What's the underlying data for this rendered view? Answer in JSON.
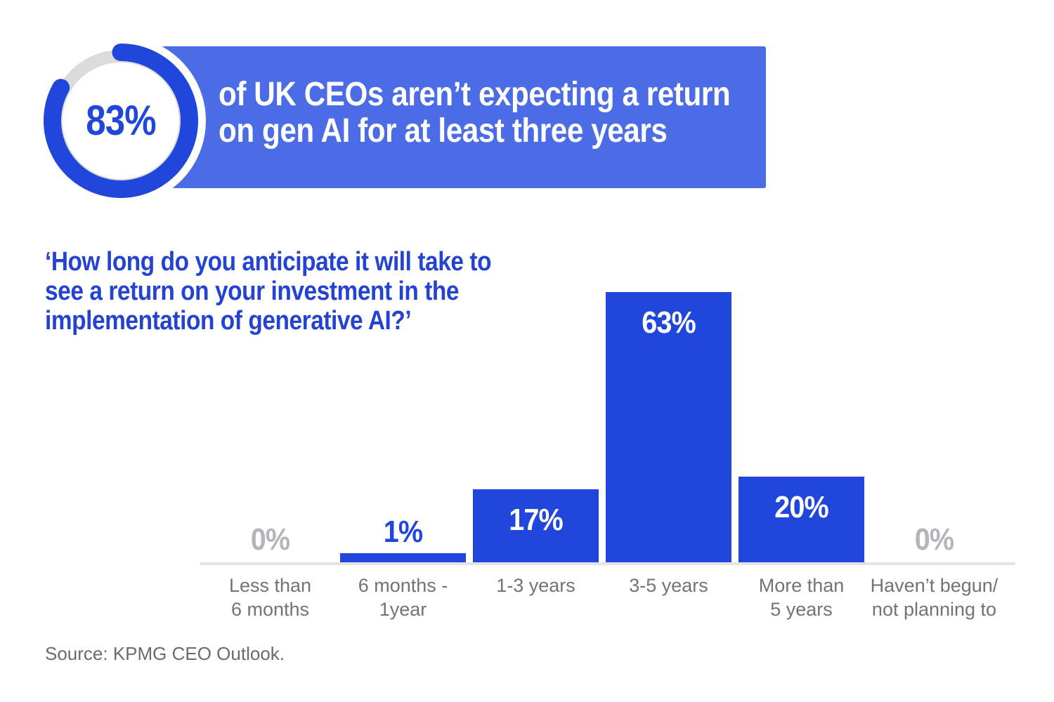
{
  "colors": {
    "accent_blue": "#2046DC",
    "banner_blue": "#4B6CE5",
    "donut_track_gray": "#DBDBDB",
    "zero_label_gray": "#B3B5B9",
    "category_gray": "#737377",
    "axis_gray": "#E4E4E7"
  },
  "stat_banner": {
    "donut_percent_label": "83%",
    "donut_value": 83,
    "line1": "of UK CEOs aren’t expecting a return",
    "line2": "on gen AI for at least three years"
  },
  "question": {
    "line1": "‘How long do you anticipate it will take to",
    "line2": "see a return on your investment in the",
    "line3": "implementation of generative AI?’"
  },
  "chart_data": {
    "type": "bar",
    "title": "How long do you anticipate it will take to see a return on your investment in the implementation of generative AI?",
    "categories": [
      "Less than\n6 months",
      "6 months -\n1year",
      "1-3 years",
      "3-5 years",
      "More than\n5 years",
      "Haven’t begun/\nnot planning to"
    ],
    "values": [
      0,
      1,
      17,
      63,
      20,
      0
    ],
    "value_labels": [
      "0%",
      "1%",
      "17%",
      "63%",
      "20%",
      "0%"
    ],
    "xlabel": "",
    "ylabel": "",
    "unit": "%",
    "ylim": [
      0,
      66
    ],
    "grid": false,
    "legend": false
  },
  "source": "Source: KPMG CEO Outlook."
}
